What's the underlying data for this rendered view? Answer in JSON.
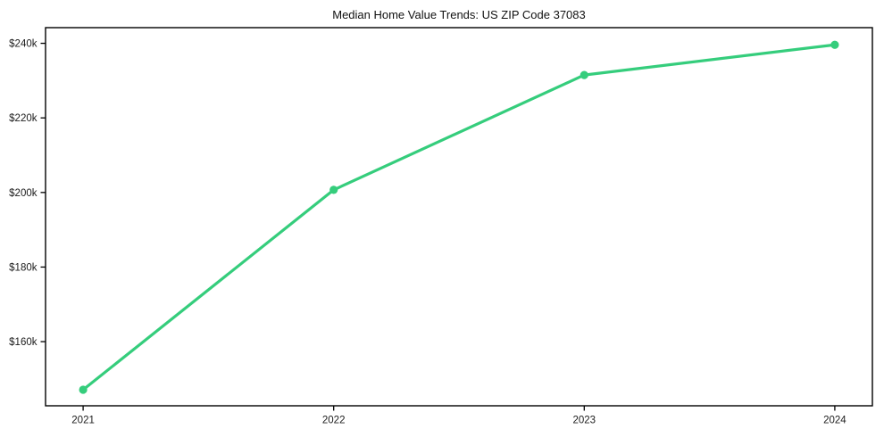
{
  "chart_data": {
    "type": "line",
    "title": "Median Home Value Trends: US ZIP Code 37083",
    "x": [
      2021,
      2022,
      2023,
      2024
    ],
    "x_tick_labels": [
      "2021",
      "2022",
      "2023",
      "2024"
    ],
    "series": [
      {
        "name": "Median home value",
        "values": [
          147100,
          200700,
          231500,
          239600
        ],
        "color": "#35cd7c",
        "marker": "circle"
      }
    ],
    "xlabel": "",
    "ylabel": "",
    "y_ticks": [
      160000,
      180000,
      200000,
      220000,
      240000
    ],
    "y_tick_labels": [
      "$160k",
      "$180k",
      "$200k",
      "$220k",
      "$240k"
    ],
    "xlim": [
      2020.85,
      2024.15
    ],
    "ylim": [
      142800,
      244200
    ],
    "grid": false,
    "legend": "none",
    "frame": true,
    "background": "#ffffff",
    "text_color": "#1c1c1c",
    "axis_color": "#000000",
    "line_width": 3.2,
    "marker_radius": 4.6
  }
}
